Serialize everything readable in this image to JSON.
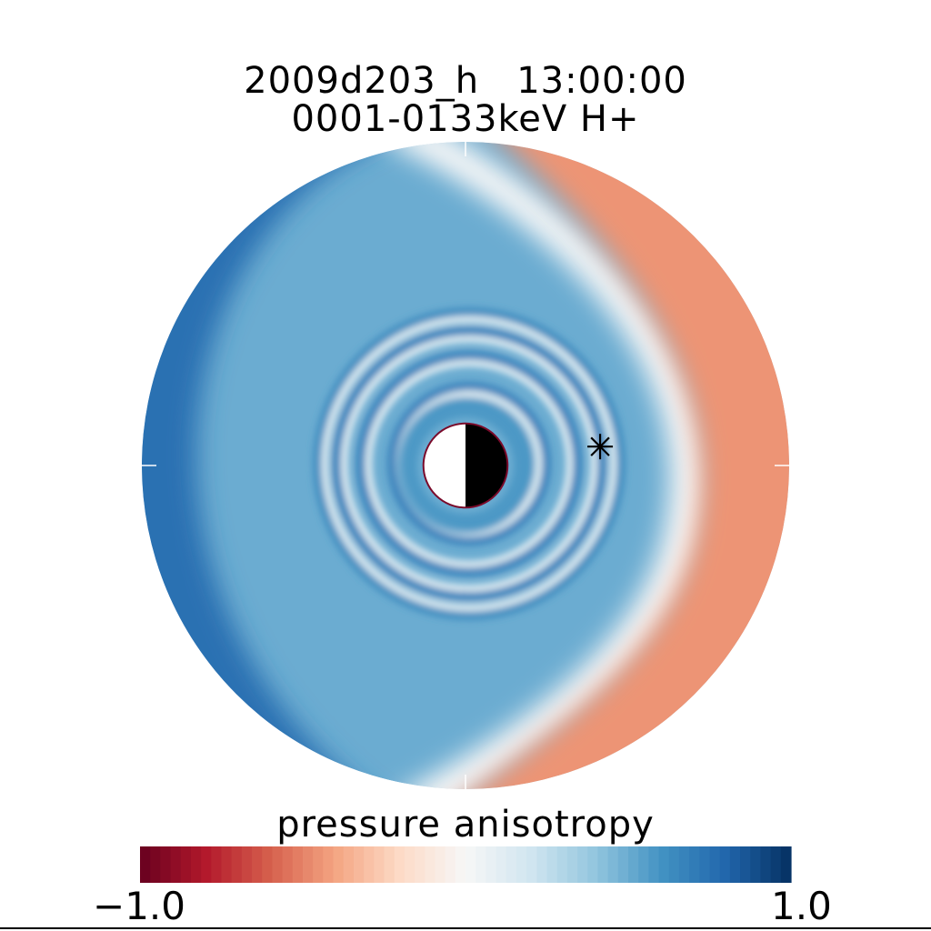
{
  "chart_data": {
    "type": "heatmap",
    "title": "2009d203_h   13:00:00",
    "subtitle": "0001-0133keV H+",
    "colorbar": {
      "label": "pressure anisotropy",
      "min": -1.0,
      "max": 1.0,
      "min_label": "−1.0",
      "max_label": "1.0",
      "colors": [
        "#67001f",
        "#b2182b",
        "#d6604d",
        "#f4a582",
        "#fddbc7",
        "#f7f7f7",
        "#d1e5f0",
        "#92c5de",
        "#4393c3",
        "#2166ac",
        "#053061"
      ]
    },
    "polar_field": {
      "inner_radius_fraction": 0.13,
      "dayside_direction": "right",
      "rings": [
        {
          "radius_fraction": 0.215,
          "value": 0.7
        },
        {
          "radius_fraction": 0.31,
          "value": 0.7
        },
        {
          "radius_fraction": 0.385,
          "value": 0.7
        },
        {
          "radius_fraction": 0.445,
          "value": 0.65
        }
      ],
      "regions": [
        {
          "sector": "dusk/night (left)",
          "value": 0.75
        },
        {
          "sector": "inner core",
          "value": 0.5
        },
        {
          "sector": "dayside outer (right)",
          "value": -0.45
        },
        {
          "sector": "boundary arc",
          "value": 0.0
        }
      ],
      "marker": {
        "symbol": "asterisk",
        "angle_deg": 8,
        "radius_fraction": 0.42
      }
    },
    "earth": {
      "day_color": "#000000",
      "night_color": "#ffffff",
      "outline_color": "#7a0a2a"
    }
  }
}
